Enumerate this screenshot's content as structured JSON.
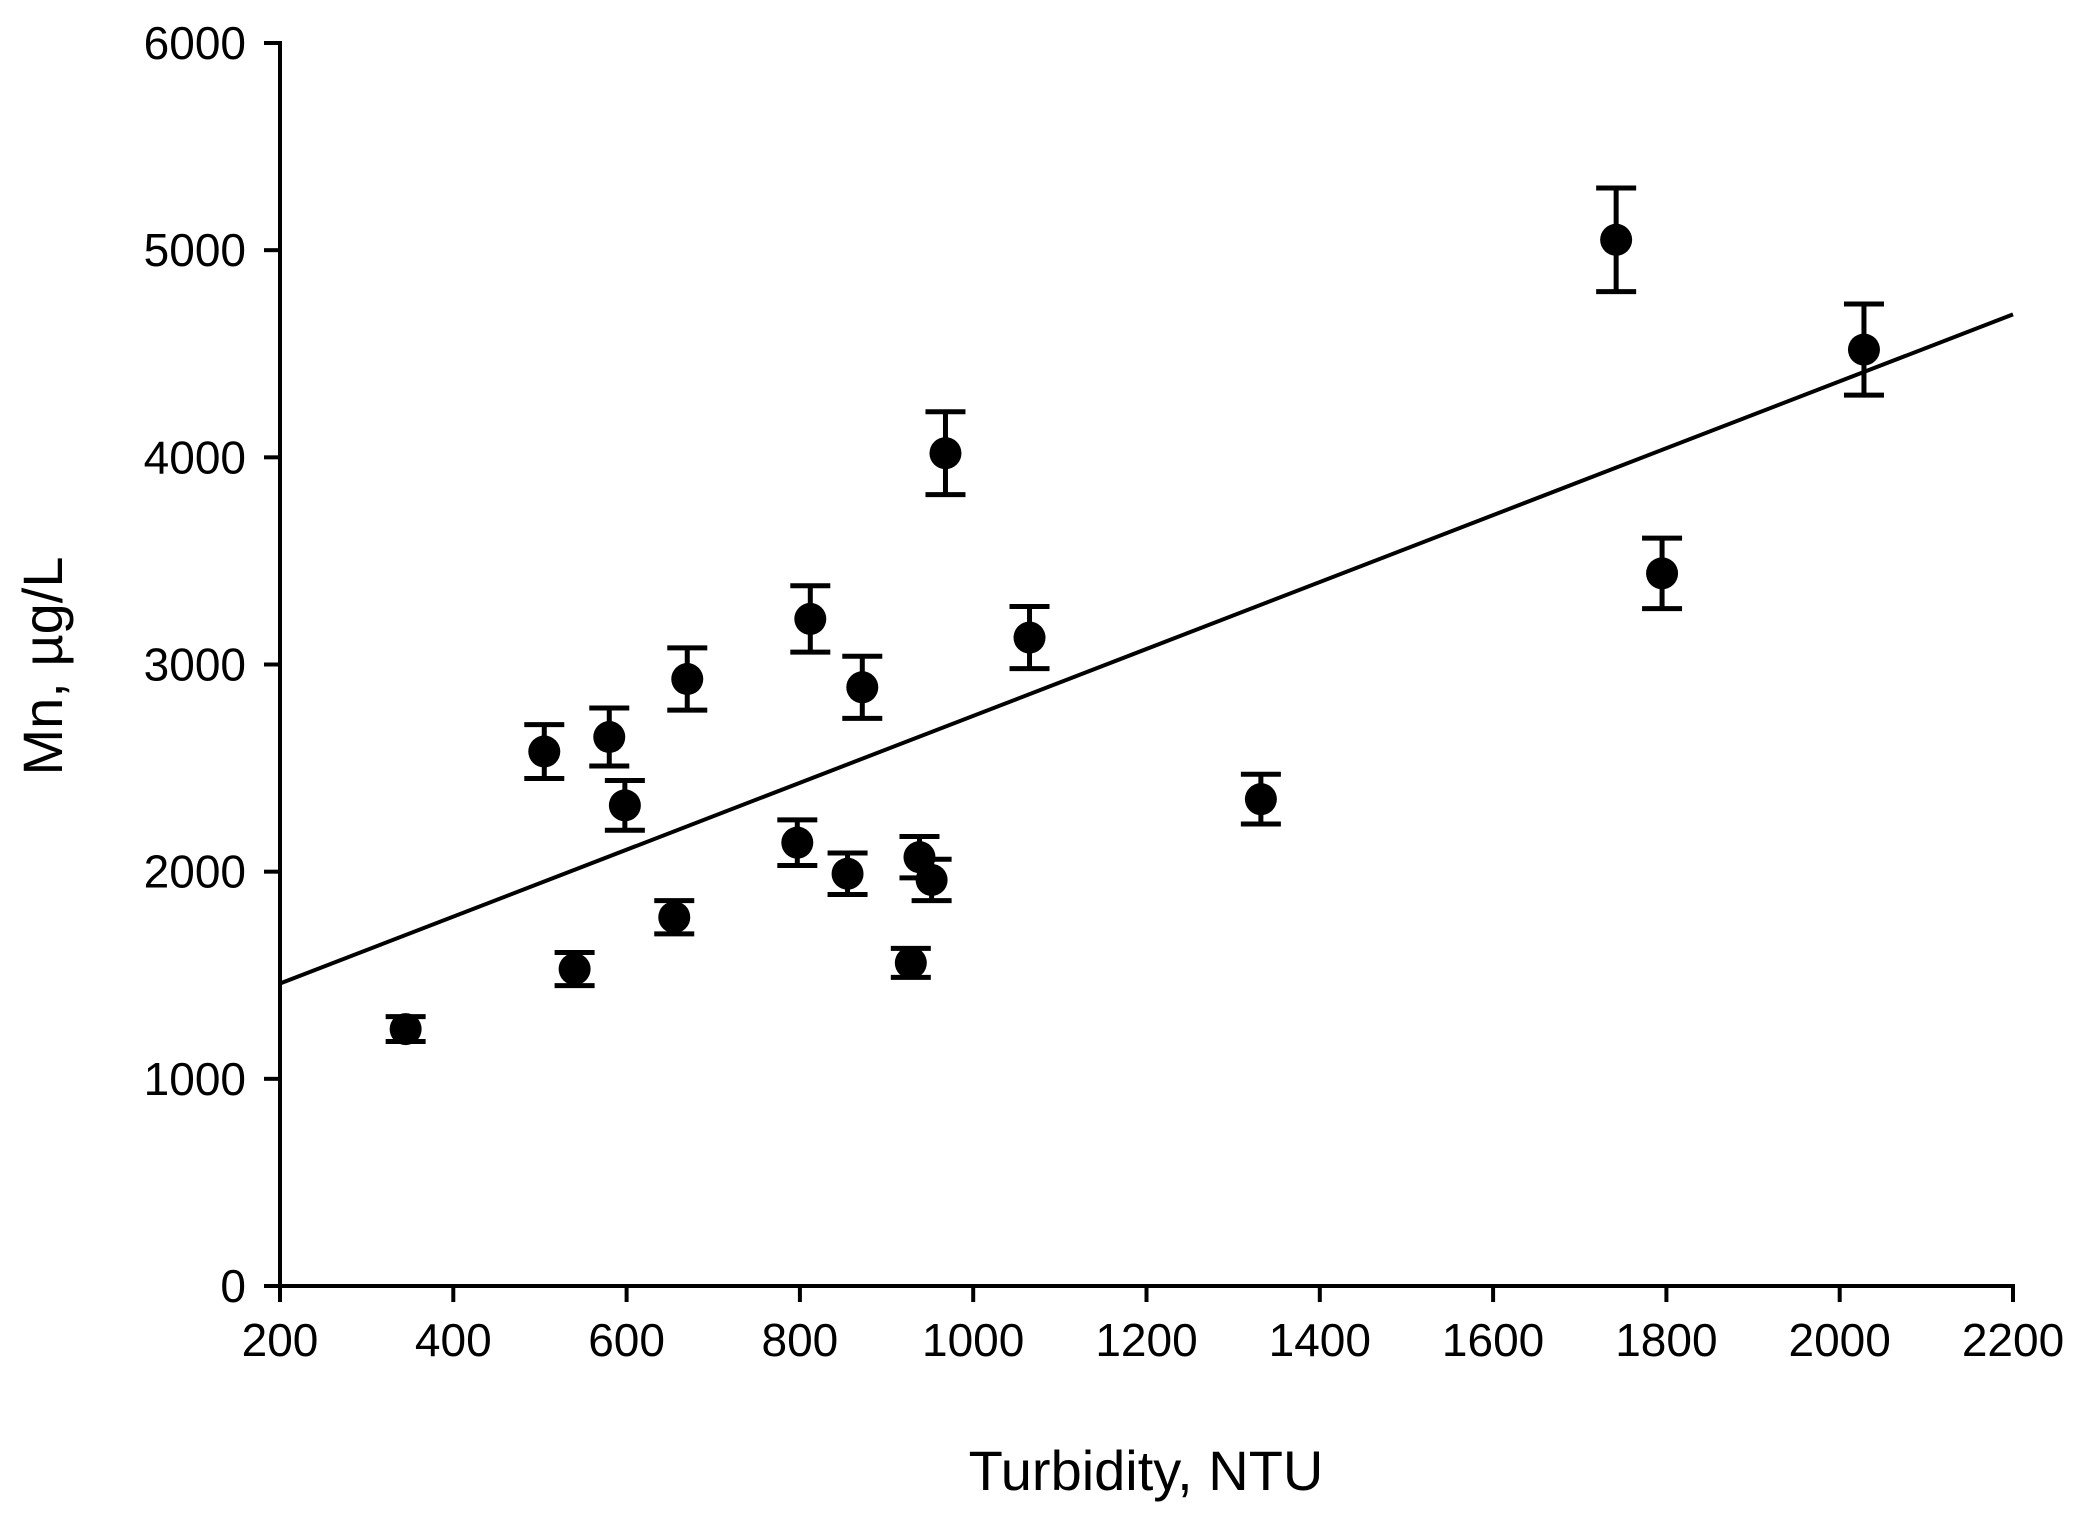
{
  "chart_data": {
    "type": "scatter",
    "title": "",
    "xlabel": "Turbidity, NTU",
    "ylabel": "Mn, µg/L",
    "xlim": [
      200,
      2200
    ],
    "ylim": [
      0,
      6000
    ],
    "x_ticks": [
      "200",
      "400",
      "600",
      "800",
      "1000",
      "1200",
      "1400",
      "1600",
      "1800",
      "2000",
      "2200"
    ],
    "y_ticks": [
      "0",
      "1000",
      "2000",
      "3000",
      "4000",
      "5000",
      "6000"
    ],
    "grid": false,
    "legend": "none",
    "marker_color": "#000000",
    "series": [
      {
        "points": [
          {
            "x": 345,
            "y": 1240,
            "err": 60
          },
          {
            "x": 505,
            "y": 2580,
            "err": 130
          },
          {
            "x": 540,
            "y": 1530,
            "err": 80
          },
          {
            "x": 580,
            "y": 2650,
            "err": 140
          },
          {
            "x": 598,
            "y": 2320,
            "err": 120
          },
          {
            "x": 655,
            "y": 1780,
            "err": 80
          },
          {
            "x": 670,
            "y": 2930,
            "err": 150
          },
          {
            "x": 797,
            "y": 2140,
            "err": 110
          },
          {
            "x": 812,
            "y": 3220,
            "err": 160
          },
          {
            "x": 855,
            "y": 1990,
            "err": 100
          },
          {
            "x": 872,
            "y": 2890,
            "err": 150
          },
          {
            "x": 928,
            "y": 1560,
            "err": 70
          },
          {
            "x": 938,
            "y": 2070,
            "err": 100
          },
          {
            "x": 952,
            "y": 1960,
            "err": 100
          },
          {
            "x": 968,
            "y": 4020,
            "err": 200
          },
          {
            "x": 1065,
            "y": 3130,
            "err": 150
          },
          {
            "x": 1332,
            "y": 2350,
            "err": 120
          },
          {
            "x": 1742,
            "y": 5050,
            "err": 250
          },
          {
            "x": 1795,
            "y": 3440,
            "err": 170
          },
          {
            "x": 2028,
            "y": 4520,
            "err": 220
          }
        ]
      }
    ],
    "trendline": {
      "x": [
        200,
        2200
      ],
      "y": [
        1460,
        4690
      ]
    }
  }
}
